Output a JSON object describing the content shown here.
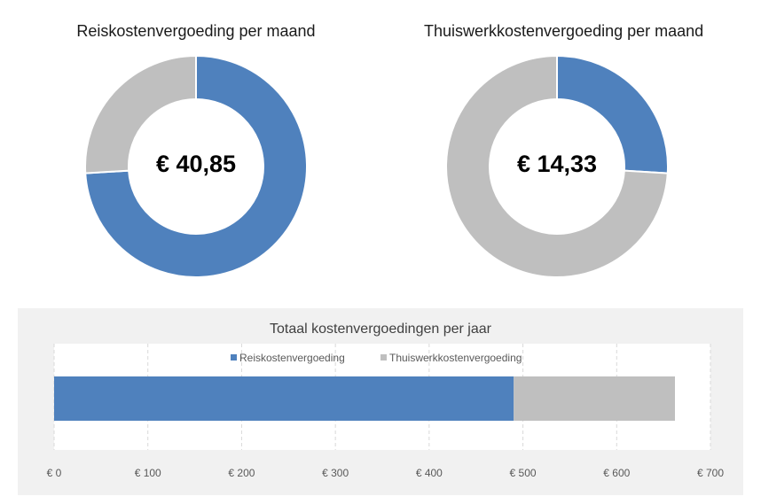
{
  "colors": {
    "blue": "#4f81bd",
    "gray": "#bfbfbf"
  },
  "chart_data": [
    {
      "type": "pie",
      "title": "Reiskostenvergoeding per maand",
      "center_label": "€ 40,85",
      "slices": [
        {
          "name": "Reiskostenvergoeding",
          "value": 40.85,
          "color": "#4f81bd"
        },
        {
          "name": "Thuiswerkkostenvergoeding",
          "value": 14.33,
          "color": "#bfbfbf"
        }
      ]
    },
    {
      "type": "pie",
      "title": "Thuiswerkkostenvergoeding per maand",
      "center_label": "€ 14,33",
      "slices": [
        {
          "name": "Thuiswerkkostenvergoeding",
          "value": 14.33,
          "color": "#4f81bd"
        },
        {
          "name": "Reiskostenvergoeding",
          "value": 40.85,
          "color": "#bfbfbf"
        }
      ]
    },
    {
      "type": "bar",
      "orientation": "horizontal",
      "stacked": true,
      "title": "Totaal kostenvergoedingen per jaar",
      "series": [
        {
          "name": "Reiskostenvergoeding",
          "values": [
            490.2
          ],
          "color": "#4f81bd"
        },
        {
          "name": "Thuiswerkkostenvergoeding",
          "values": [
            171.96
          ],
          "color": "#bfbfbf"
        }
      ],
      "xlim": [
        0,
        700
      ],
      "xticks": [
        0,
        100,
        200,
        300,
        400,
        500,
        600,
        700
      ],
      "xtick_labels": [
        "€ 0",
        "€ 100",
        "€ 200",
        "€ 300",
        "€ 400",
        "€ 500",
        "€ 600",
        "€ 700"
      ],
      "legend_position": "top",
      "grid": "vertical dashed"
    }
  ]
}
